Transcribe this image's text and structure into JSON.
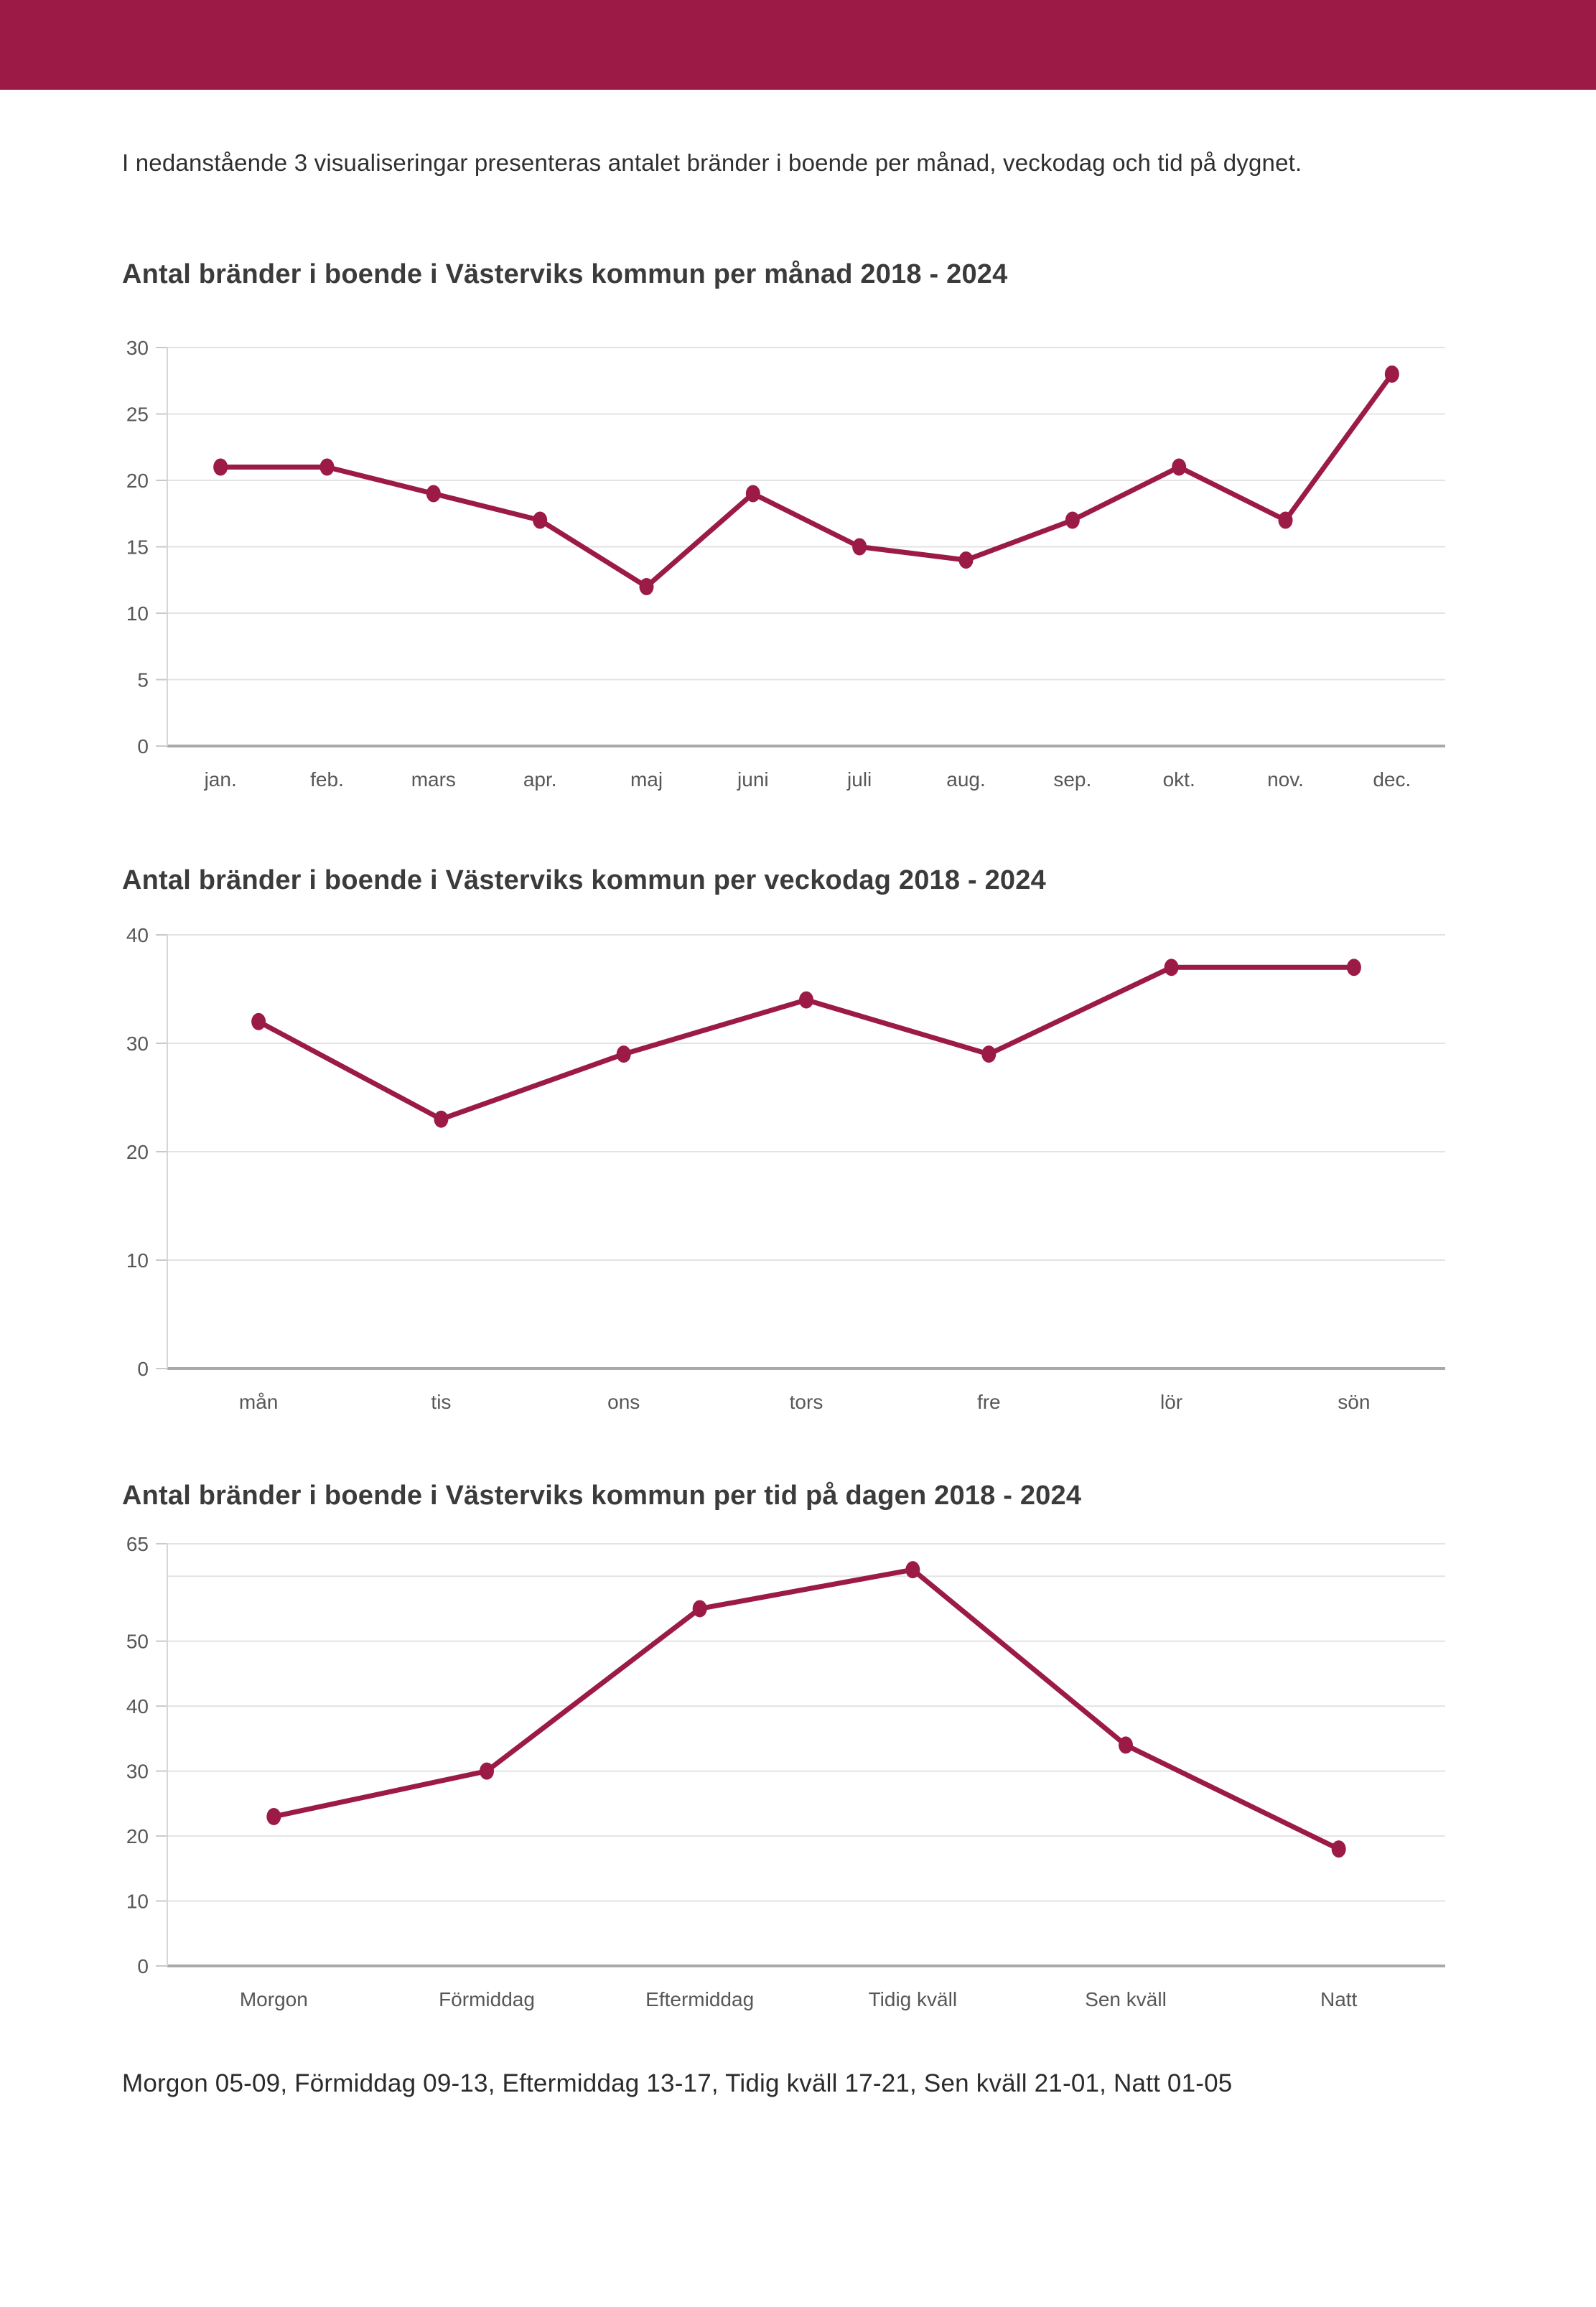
{
  "page": {
    "header_color": "#9B1B46",
    "intro_text": "I nedanstående 3 visualiseringar presenteras antalet bränder i boende per månad, veckodag och tid på dygnet.",
    "footer_text": "Morgon 05-09, Förmiddag 09-13, Eftermiddag 13-17, Tidig kväll 17-21, Sen kväll 21-01, Natt 01-05"
  },
  "chart_data": [
    {
      "type": "line",
      "title": "Antal bränder i boende i Västerviks kommun per månad 2018 - 2024",
      "categories": [
        "jan.",
        "feb.",
        "mars",
        "apr.",
        "maj",
        "juni",
        "juli",
        "aug.",
        "sep.",
        "okt.",
        "nov.",
        "dec."
      ],
      "values": [
        21,
        21,
        19,
        17,
        12,
        19,
        15,
        14,
        17,
        21,
        17,
        28
      ],
      "xlabel": "",
      "ylabel": "",
      "ylim": [
        0,
        30
      ],
      "yticks": [
        0,
        5,
        10,
        15,
        20,
        25,
        30
      ],
      "ytick_labels": [
        "0",
        "5",
        "10",
        "15",
        "20",
        "25",
        "30"
      ],
      "grid": true,
      "legend": "none",
      "line_color": "#9C1B46"
    },
    {
      "type": "line",
      "title": "Antal bränder i boende i Västerviks kommun per veckodag 2018 - 2024",
      "categories": [
        "mån",
        "tis",
        "ons",
        "tors",
        "fre",
        "lör",
        "sön"
      ],
      "values": [
        32,
        23,
        29,
        34,
        29,
        37,
        37
      ],
      "xlabel": "",
      "ylabel": "",
      "ylim": [
        0,
        40
      ],
      "yticks": [
        0,
        10,
        20,
        30,
        40
      ],
      "ytick_labels": [
        "0",
        "10",
        "20",
        "30",
        "40"
      ],
      "grid": true,
      "legend": "none",
      "line_color": "#9C1B46"
    },
    {
      "type": "line",
      "title": "Antal bränder i boende i Västerviks kommun per tid på dagen 2018 - 2024",
      "categories": [
        "Morgon",
        "Förmiddag",
        "Eftermiddag",
        "Tidig kväll",
        "Sen kväll",
        "Natt"
      ],
      "values": [
        23,
        30,
        55,
        61,
        34,
        18
      ],
      "xlabel": "",
      "ylabel": "",
      "ylim": [
        0,
        65
      ],
      "yticks": [
        0,
        10,
        20,
        30,
        40,
        50,
        60,
        65
      ],
      "ytick_labels": [
        "0",
        "10",
        "20",
        "30",
        "40",
        "50",
        "",
        "65"
      ],
      "grid": true,
      "legend": "none",
      "line_color": "#9C1B46"
    }
  ],
  "style": {
    "gridline_color": "#E3E3E3",
    "axis_left_color": "#D6D6D6",
    "zero_line_color": "#A9A9A9",
    "tick_stub_color": "#C9C9C9",
    "tick_text_color": "#575757"
  }
}
